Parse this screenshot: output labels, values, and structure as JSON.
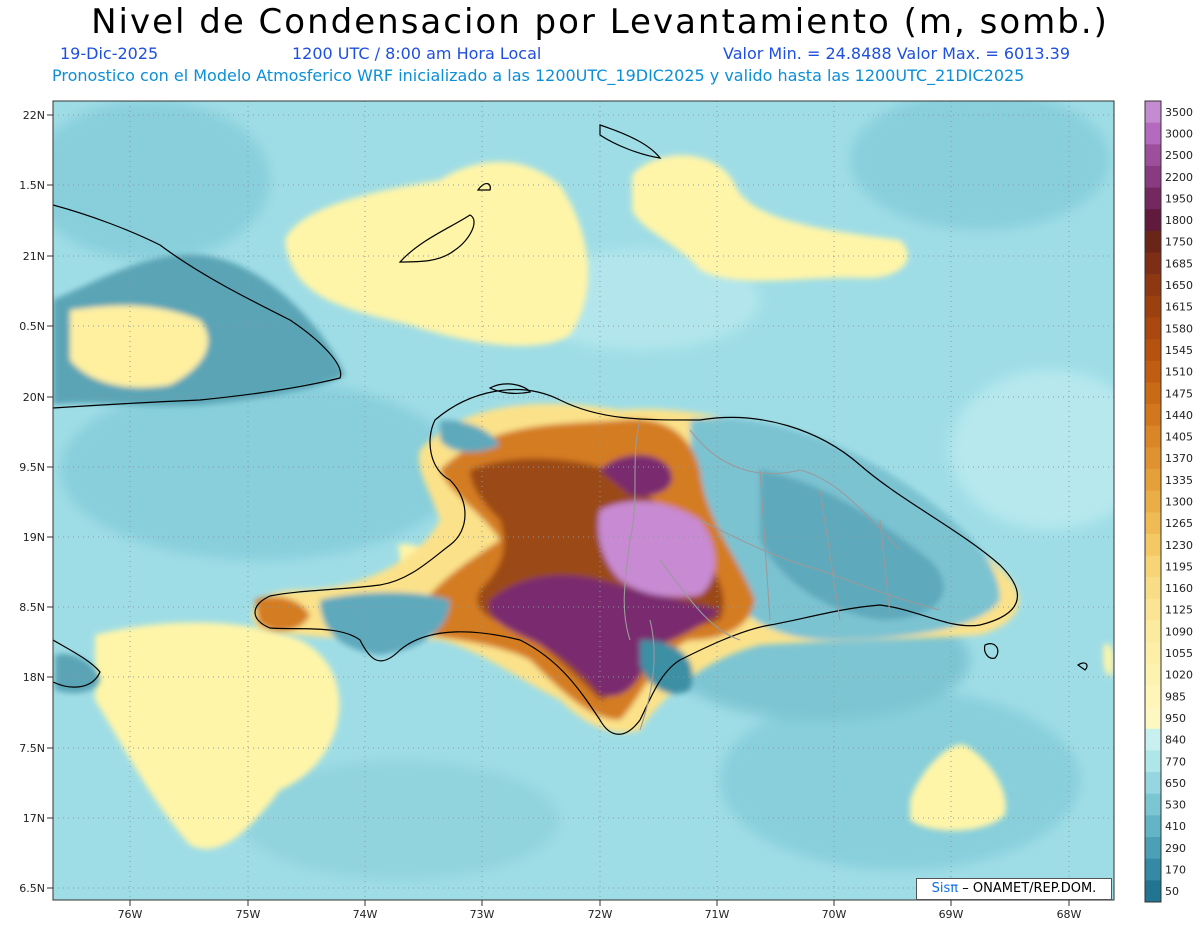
{
  "header": {
    "title": "Nivel de Condensacion por Levantamiento (m, somb.)",
    "date": "19-Dic-2025",
    "time": "1200 UTC / 8:00 am Hora Local",
    "min_max": "Valor Min. = 24.8488  Valor Max. = 6013.39",
    "info": "Pronostico con el Modelo Atmosferico WRF inicializado a las 1200UTC_19DIC2025 y valido hasta las  1200UTC_21DIC2025"
  },
  "axes": {
    "lat_labels": [
      "22N",
      "1.5N",
      "21N",
      "0.5N",
      "20N",
      "9.5N",
      "19N",
      "8.5N",
      "18N",
      "7.5N",
      "17N",
      "6.5N"
    ],
    "lon_labels": [
      "76W",
      "75W",
      "74W",
      "73W",
      "72W",
      "71W",
      "70W",
      "69W",
      "68W"
    ]
  },
  "colorbar": {
    "levels": [
      "3500",
      "3000",
      "2500",
      "2200",
      "1950",
      "1800",
      "1750",
      "1685",
      "1650",
      "1615",
      "1580",
      "1545",
      "1510",
      "1475",
      "1440",
      "1405",
      "1370",
      "1335",
      "1300",
      "1265",
      "1230",
      "1195",
      "1160",
      "1125",
      "1090",
      "1055",
      "1020",
      "985",
      "950",
      "840",
      "770",
      "650",
      "530",
      "410",
      "290",
      "170",
      "50"
    ],
    "colors": [
      "#c58bd0",
      "#b46bbf",
      "#9e4f9b",
      "#8a3a80",
      "#74285f",
      "#601a3c",
      "#6b2418",
      "#7e2e14",
      "#8e3812",
      "#9c4010",
      "#aa480f",
      "#b5520f",
      "#c05d12",
      "#c96a17",
      "#d2771e",
      "#da8526",
      "#e09230",
      "#e6a03a",
      "#ebad46",
      "#f0bb55",
      "#f4c865",
      "#f7d476",
      "#f9dd86",
      "#fbe594",
      "#fceb9f",
      "#fdefa8",
      "#fef2b0",
      "#fff5b8",
      "#fff7c2",
      "#c8f0f0",
      "#aee6ea",
      "#95d6e0",
      "#7cc6d4",
      "#63b4c6",
      "#4b9fb6",
      "#348aa4",
      "#217590"
    ]
  },
  "credit": {
    "sis": "Sisπ",
    "rest": "– ONAMET/REP.DOM."
  },
  "colors": {
    "ocean_light": "#a6e2ea",
    "ocean_mid": "#86cfdc",
    "yellow": "#fff5a8",
    "orange": "#d8892e",
    "brown": "#9c4a12",
    "purple": "#7a2c6e",
    "lilac": "#c88ad2",
    "teal_dark": "#3e8fa4"
  }
}
